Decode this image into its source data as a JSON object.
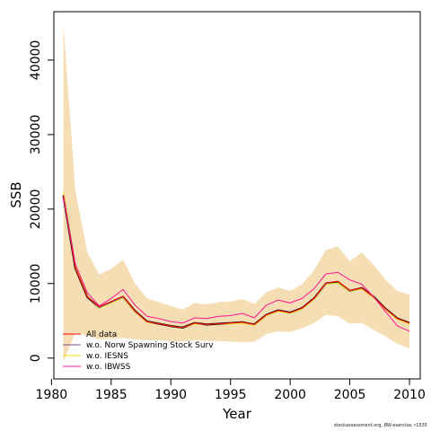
{
  "chart_data": {
    "type": "line",
    "xlabel": "Year",
    "ylabel": "SSB",
    "xlim": [
      1980.2,
      2010.9
    ],
    "ylim": [
      -2800,
      46500
    ],
    "xticks": [
      1980,
      1985,
      1990,
      1995,
      2000,
      2005,
      2010
    ],
    "yticks": [
      0,
      10000,
      20000,
      30000,
      40000
    ],
    "grid": false,
    "legend_position": "bottom-left",
    "x": [
      1981,
      1982,
      1983,
      1984,
      1985,
      1986,
      1987,
      1988,
      1989,
      1990,
      1991,
      1992,
      1993,
      1994,
      1995,
      1996,
      1997,
      1998,
      1999,
      2000,
      2001,
      2002,
      2003,
      2004,
      2005,
      2006,
      2007,
      2008,
      2009,
      2010
    ],
    "band": {
      "color": "#f5deb3",
      "upper": [
        44800,
        22500,
        14200,
        11200,
        12000,
        13200,
        10000,
        8000,
        7500,
        7000,
        6500,
        7400,
        7200,
        7500,
        7600,
        7900,
        7300,
        8800,
        9500,
        9000,
        9900,
        11800,
        14500,
        15000,
        13000,
        14200,
        12500,
        10500,
        9000,
        8500
      ],
      "lower": [
        -500,
        3400,
        3000,
        2500,
        2600,
        2700,
        2500,
        2400,
        2400,
        2300,
        2200,
        2400,
        2300,
        2300,
        2200,
        2100,
        2200,
        3200,
        3600,
        3500,
        4000,
        4700,
        5800,
        5600,
        4600,
        4700,
        3800,
        2900,
        1900,
        1300
      ]
    },
    "series": [
      {
        "name": "All data",
        "color": "#ff0000",
        "values": [
          21800,
          12100,
          8200,
          6900,
          7600,
          8300,
          6300,
          4900,
          4600,
          4300,
          4100,
          4700,
          4500,
          4600,
          4700,
          4800,
          4500,
          5800,
          6400,
          6100,
          6700,
          8000,
          10100,
          10300,
          9100,
          9400,
          8200,
          6600,
          5300,
          4700
        ]
      },
      {
        "name": "w.o. Norw Spawning Stock Surv",
        "color": "#7b4a9b",
        "values": [
          21900,
          12100,
          8200,
          6800,
          7500,
          8200,
          6300,
          4900,
          4600,
          4300,
          4100,
          4700,
          4500,
          4600,
          4700,
          4800,
          4500,
          5800,
          6400,
          6100,
          6700,
          8000,
          10000,
          10300,
          9000,
          9400,
          8200,
          6600,
          5300,
          4700
        ]
      },
      {
        "name": "w.o. IESNS",
        "color": "#e6e600",
        "values": [
          22300,
          12300,
          8300,
          6700,
          7400,
          8100,
          6200,
          4800,
          4600,
          4300,
          4100,
          4600,
          4500,
          4600,
          4600,
          4700,
          4400,
          5700,
          6300,
          6000,
          6600,
          7900,
          9900,
          10100,
          8900,
          9300,
          8100,
          6500,
          5200,
          4600
        ]
      },
      {
        "name": "w.o. IBWSS",
        "color": "#ff1493",
        "values": [
          21600,
          12600,
          8800,
          7000,
          8000,
          9200,
          7100,
          5600,
          5300,
          4900,
          4700,
          5400,
          5300,
          5600,
          5700,
          6000,
          5400,
          7100,
          7800,
          7400,
          8000,
          9300,
          11300,
          11500,
          10500,
          9900,
          8200,
          6200,
          4300,
          3600
        ]
      }
    ],
    "main_line": {
      "color": "#000000",
      "values": [
        21800,
        12100,
        8200,
        6800,
        7500,
        8200,
        6300,
        4900,
        4600,
        4300,
        4100,
        4700,
        4500,
        4600,
        4700,
        4800,
        4500,
        5800,
        6400,
        6100,
        6700,
        8000,
        10000,
        10200,
        9000,
        9400,
        8200,
        6600,
        5300,
        4700
      ]
    }
  },
  "footer_text": "stockassessment.org, BW-exercise, r1535"
}
